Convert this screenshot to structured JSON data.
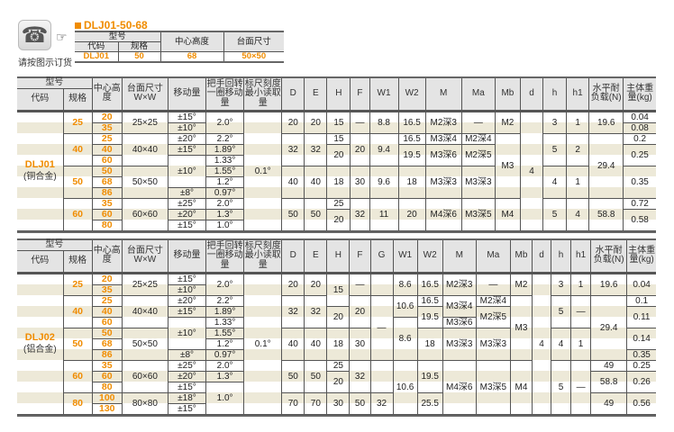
{
  "order": {
    "icon": "telephone-icon",
    "text": "请按图示订货",
    "hand_icon": "pointing-hand-icon"
  },
  "example": {
    "title": "DLJ01-50-68",
    "headers": {
      "model": "型号",
      "code": "代码",
      "size": "规格",
      "center": "中心高度",
      "table": "台面尺寸"
    },
    "values": {
      "code": "DLJ01",
      "size": "50",
      "center": "68",
      "table": "50×50"
    }
  },
  "colors": {
    "accent": "#f08c00",
    "stripe": "#ede9d8",
    "header": "#e4e4e4"
  },
  "table1": {
    "headers": {
      "model": "型号",
      "code": "代码",
      "size": "规格",
      "center": "中心高度",
      "table": "台面尺寸 W×W",
      "move": "移动量",
      "turn": "把手回转一圈移动量",
      "scale": "标尺刻度最小读取量",
      "D": "D",
      "E": "E",
      "H": "H",
      "F": "F",
      "W1": "W1",
      "W2": "W2",
      "M": "M",
      "Ma": "Ma",
      "Mb": "Mb",
      "d": "d",
      "h": "h",
      "h1": "h1",
      "load": "水平耐负载(N)",
      "weight": "主体重量(kg)"
    },
    "rows": [
      [
        {
          "k": "code",
          "t": "DLJ01",
          "sub": "(铜合金)",
          "rs": 11
        },
        {
          "k": "size",
          "t": "25",
          "rs": 2
        },
        {
          "k": "ch",
          "t": "20"
        },
        {
          "k": "tbl",
          "t": "25×25",
          "rs": 2
        },
        {
          "k": "move",
          "t": "±15°"
        },
        {
          "k": "turn",
          "t": "2.0°",
          "rs": 2
        },
        {
          "k": "scale",
          "t": "0.1°",
          "rs": 11
        },
        {
          "k": "D",
          "t": "20",
          "rs": 2
        },
        {
          "k": "E",
          "t": "20",
          "rs": 2
        },
        {
          "k": "H",
          "t": "15",
          "rs": 2
        },
        {
          "k": "F",
          "t": "—",
          "rs": 2
        },
        {
          "k": "W1",
          "t": "8.8",
          "rs": 2
        },
        {
          "k": "W2",
          "t": "16.5",
          "rs": 2
        },
        {
          "k": "M",
          "t": "M2深3",
          "rs": 2
        },
        {
          "k": "Ma",
          "t": "—",
          "rs": 2
        },
        {
          "k": "Mb",
          "t": "M2",
          "rs": 2
        },
        {
          "k": "d",
          "t": "4",
          "rs": 11
        },
        {
          "k": "h",
          "t": "3",
          "rs": 2
        },
        {
          "k": "h1",
          "t": "1",
          "rs": 2
        },
        {
          "k": "load",
          "t": "19.6",
          "rs": 2
        },
        {
          "k": "weight",
          "t": "0.04"
        }
      ],
      [
        {
          "k": "ch",
          "t": "35"
        },
        {
          "k": "move",
          "t": "±10°"
        },
        {
          "k": "weight",
          "t": "0.08"
        }
      ],
      [
        {
          "k": "size",
          "t": "40",
          "rs": 3
        },
        {
          "k": "ch",
          "t": "25"
        },
        {
          "k": "tbl",
          "t": "40×40",
          "rs": 3
        },
        {
          "k": "move",
          "t": "±20°"
        },
        {
          "k": "turn",
          "t": "2.2°"
        },
        {
          "k": "D",
          "t": "32",
          "rs": 3
        },
        {
          "k": "E",
          "t": "32",
          "rs": 3
        },
        {
          "k": "H",
          "t": "15"
        },
        {
          "k": "F",
          "t": "20",
          "rs": 3
        },
        {
          "k": "W1",
          "t": "9.4",
          "rs": 3
        },
        {
          "k": "W2",
          "t": "16.5"
        },
        {
          "k": "M",
          "t": "M3深4"
        },
        {
          "k": "Ma",
          "t": "M2深4"
        },
        {
          "k": "Mb",
          "t": "M3",
          "rs": 6
        },
        {
          "k": "h",
          "t": "5",
          "rs": 3
        },
        {
          "k": "h1",
          "t": "2",
          "rs": 3
        },
        {
          "k": "load",
          "t": "29.4",
          "rs": 6
        },
        {
          "k": "weight",
          "t": "0.2"
        }
      ],
      [
        {
          "k": "ch",
          "t": "40"
        },
        {
          "k": "move",
          "t": "±15°"
        },
        {
          "k": "turn",
          "t": "1.89°"
        },
        {
          "k": "H",
          "t": "20",
          "rs": 2
        },
        {
          "k": "W2",
          "t": "19.5",
          "rs": 2
        },
        {
          "k": "M",
          "t": "M3深6",
          "rs": 2
        },
        {
          "k": "Ma",
          "t": "M2深5",
          "rs": 2
        },
        {
          "k": "weight",
          "t": "0.25",
          "rs": 2
        }
      ],
      [
        {
          "k": "ch",
          "t": "60"
        },
        {
          "k": "move",
          "t": "±10°",
          "rs": 3
        },
        {
          "k": "turn",
          "t": "1.33°"
        }
      ],
      [
        {
          "k": "size",
          "t": "50",
          "rs": 3
        },
        {
          "k": "ch",
          "t": "50"
        },
        {
          "k": "tbl",
          "t": "50×50",
          "rs": 3
        },
        {
          "k": "turn",
          "t": "1.55°"
        },
        {
          "k": "D",
          "t": "40",
          "rs": 3
        },
        {
          "k": "E",
          "t": "40",
          "rs": 3
        },
        {
          "k": "H",
          "t": "18",
          "rs": 3
        },
        {
          "k": "F",
          "t": "30",
          "rs": 3
        },
        {
          "k": "W1",
          "t": "9.6",
          "rs": 3
        },
        {
          "k": "W2",
          "t": "18",
          "rs": 3
        },
        {
          "k": "M",
          "t": "M3深3",
          "rs": 3
        },
        {
          "k": "Ma",
          "t": "M3深3",
          "rs": 3
        },
        {
          "k": "h",
          "t": "4",
          "rs": 3
        },
        {
          "k": "h1",
          "t": "1",
          "rs": 3
        },
        {
          "k": "weight",
          "t": "0.35",
          "rs": 3
        }
      ],
      [
        {
          "k": "ch",
          "t": "68"
        },
        {
          "k": "turn",
          "t": "1.2°"
        }
      ],
      [
        {
          "k": "ch",
          "t": "86"
        },
        {
          "k": "move",
          "t": "±8°"
        },
        {
          "k": "turn",
          "t": "0.97°"
        }
      ],
      [
        {
          "k": "size",
          "t": "60",
          "rs": 3
        },
        {
          "k": "ch",
          "t": "35"
        },
        {
          "k": "tbl",
          "t": "60×60",
          "rs": 3
        },
        {
          "k": "move",
          "t": "±25°"
        },
        {
          "k": "turn",
          "t": "2.0°"
        },
        {
          "k": "D",
          "t": "50",
          "rs": 3
        },
        {
          "k": "E",
          "t": "50",
          "rs": 3
        },
        {
          "k": "H",
          "t": "25"
        },
        {
          "k": "F",
          "t": "32",
          "rs": 3
        },
        {
          "k": "W1",
          "t": "11",
          "rs": 3
        },
        {
          "k": "W2",
          "t": "20",
          "rs": 3
        },
        {
          "k": "M",
          "t": "M4深6",
          "rs": 3
        },
        {
          "k": "Ma",
          "t": "M3深5",
          "rs": 3
        },
        {
          "k": "Mb",
          "t": "M4",
          "rs": 3
        },
        {
          "k": "h",
          "t": "5",
          "rs": 3
        },
        {
          "k": "h1",
          "t": "4",
          "rs": 3
        },
        {
          "k": "load",
          "t": "58.8",
          "rs": 3
        },
        {
          "k": "weight",
          "t": "0.72"
        }
      ],
      [
        {
          "k": "ch",
          "t": "60"
        },
        {
          "k": "move",
          "t": "±20°"
        },
        {
          "k": "turn",
          "t": "1.3°"
        },
        {
          "k": "H",
          "t": "20",
          "rs": 2
        },
        {
          "k": "weight",
          "t": "0.58",
          "rs": 2
        }
      ],
      [
        {
          "k": "ch",
          "t": "80"
        },
        {
          "k": "move",
          "t": "±15°"
        },
        {
          "k": "turn",
          "t": "1.0°"
        }
      ]
    ]
  },
  "table2": {
    "headers": {
      "model": "型号",
      "code": "代码",
      "size": "规格",
      "center": "中心高度",
      "table": "台面尺寸 W×W",
      "move": "移动量",
      "turn": "把手回转一圈移动量",
      "scale": "标尺刻度最小读取量",
      "D": "D",
      "E": "E",
      "H": "H",
      "F": "F",
      "G": "G",
      "W1": "W1",
      "W2": "W2",
      "M": "M",
      "Ma": "Ma",
      "Mb": "Mb",
      "d": "d",
      "h": "h",
      "h1": "h1",
      "load": "水平耐负载(N)",
      "weight": "主体重量(kg)"
    },
    "rows": [
      [
        {
          "k": "code",
          "t": "DLJ02",
          "sub": "(铝合金)",
          "rs": 13
        },
        {
          "k": "size",
          "t": "25",
          "rs": 2
        },
        {
          "k": "ch",
          "t": "20"
        },
        {
          "k": "tbl",
          "t": "25×25",
          "rs": 2
        },
        {
          "k": "move",
          "t": "±15°"
        },
        {
          "k": "turn",
          "t": "2.0°",
          "rs": 2
        },
        {
          "k": "scale",
          "t": "0.1°",
          "rs": 13
        },
        {
          "k": "D",
          "t": "20",
          "rs": 2
        },
        {
          "k": "E",
          "t": "20",
          "rs": 2
        },
        {
          "k": "H",
          "t": "15",
          "rs": 3
        },
        {
          "k": "F",
          "t": "—",
          "rs": 2
        },
        {
          "k": "G",
          "t": "",
          "rs": 2
        },
        {
          "k": "W1",
          "t": "8.6",
          "rs": 2
        },
        {
          "k": "W2",
          "t": "16.5",
          "rs": 2
        },
        {
          "k": "M",
          "t": "M2深3",
          "rs": 2
        },
        {
          "k": "Ma",
          "t": "—",
          "rs": 2
        },
        {
          "k": "Mb",
          "t": "M2",
          "rs": 2
        },
        {
          "k": "d",
          "t": "4",
          "rs": 13
        },
        {
          "k": "h",
          "t": "3",
          "rs": 2
        },
        {
          "k": "h1",
          "t": "1",
          "rs": 2
        },
        {
          "k": "load",
          "t": "19.6",
          "rs": 2
        },
        {
          "k": "weight",
          "t": "0.04",
          "rs": 2
        }
      ],
      [
        {
          "k": "ch",
          "t": "35"
        },
        {
          "k": "move",
          "t": "±10°"
        }
      ],
      [
        {
          "k": "size",
          "t": "40",
          "rs": 3
        },
        {
          "k": "ch",
          "t": "25"
        },
        {
          "k": "tbl",
          "t": "40×40",
          "rs": 3
        },
        {
          "k": "move",
          "t": "±20°"
        },
        {
          "k": "turn",
          "t": "2.2°"
        },
        {
          "k": "D",
          "t": "32",
          "rs": 3
        },
        {
          "k": "E",
          "t": "32",
          "rs": 3
        },
        {
          "k": "F",
          "t": "20",
          "rs": 3
        },
        {
          "k": "G",
          "t": "—",
          "rs": 6
        },
        {
          "k": "W1",
          "t": "10.6",
          "rs": 2
        },
        {
          "k": "W2",
          "t": "16.5"
        },
        {
          "k": "M",
          "t": "M3深4",
          "rs": 2
        },
        {
          "k": "Ma",
          "t": "M2深4"
        },
        {
          "k": "Mb",
          "t": "M3",
          "rs": 6
        },
        {
          "k": "h",
          "t": "5",
          "rs": 3
        },
        {
          "k": "h1",
          "t": "—",
          "rs": 3
        },
        {
          "k": "load",
          "t": "29.4",
          "rs": 6
        },
        {
          "k": "weight",
          "t": "0.1"
        }
      ],
      [
        {
          "k": "ch",
          "t": "40"
        },
        {
          "k": "move",
          "t": "±15°"
        },
        {
          "k": "turn",
          "t": "1.89°"
        },
        {
          "k": "H",
          "t": "20",
          "rs": 2
        },
        {
          "k": "W2",
          "t": "19.5",
          "rs": 2
        },
        {
          "k": "Ma",
          "t": "M2深5",
          "rs": 2
        },
        {
          "k": "weight",
          "t": "0.11",
          "rs": 2
        }
      ],
      [
        {
          "k": "ch",
          "t": "60"
        },
        {
          "k": "move",
          "t": "±10°",
          "rs": 3
        },
        {
          "k": "turn",
          "t": "1.33°"
        },
        {
          "k": "W1",
          "t": "8.6",
          "rs": 4
        },
        {
          "k": "M",
          "t": "M3深6"
        }
      ],
      [
        {
          "k": "size",
          "t": "50",
          "rs": 3
        },
        {
          "k": "ch",
          "t": "50"
        },
        {
          "k": "tbl",
          "t": "50×50",
          "rs": 3
        },
        {
          "k": "turn",
          "t": "1.55°"
        },
        {
          "k": "D",
          "t": "40",
          "rs": 3
        },
        {
          "k": "E",
          "t": "40",
          "rs": 3
        },
        {
          "k": "H",
          "t": "18",
          "rs": 3
        },
        {
          "k": "F",
          "t": "30",
          "rs": 3
        },
        {
          "k": "W2",
          "t": "18",
          "rs": 3
        },
        {
          "k": "M",
          "t": "M3深3",
          "rs": 3
        },
        {
          "k": "Ma",
          "t": "M3深3",
          "rs": 3
        },
        {
          "k": "h",
          "t": "4",
          "rs": 3
        },
        {
          "k": "h1",
          "t": "1",
          "rs": 3
        },
        {
          "k": "weight",
          "t": "0.14",
          "rs": 2
        }
      ],
      [
        {
          "k": "ch",
          "t": "68"
        },
        {
          "k": "turn",
          "t": "1.2°"
        }
      ],
      [
        {
          "k": "ch",
          "t": "86"
        },
        {
          "k": "move",
          "t": "±8°"
        },
        {
          "k": "turn",
          "t": "0.97°"
        },
        {
          "k": "weight",
          "t": "0.35"
        }
      ],
      [
        {
          "k": "size",
          "t": "60",
          "rs": 3
        },
        {
          "k": "ch",
          "t": "35"
        },
        {
          "k": "tbl",
          "t": "60×60",
          "rs": 3
        },
        {
          "k": "move",
          "t": "±25°"
        },
        {
          "k": "turn",
          "t": "2.0°"
        },
        {
          "k": "D",
          "t": "50",
          "rs": 3
        },
        {
          "k": "E",
          "t": "50",
          "rs": 3
        },
        {
          "k": "H",
          "t": "25"
        },
        {
          "k": "F",
          "t": "32",
          "rs": 3
        },
        {
          "k": "G",
          "t": "",
          "rs": 3
        },
        {
          "k": "W1",
          "t": "10.6",
          "rs": 5
        },
        {
          "k": "W2",
          "t": "19.5",
          "rs": 3
        },
        {
          "k": "M",
          "t": "M4深6",
          "rs": 5
        },
        {
          "k": "Ma",
          "t": "M3深5",
          "rs": 5
        },
        {
          "k": "Mb",
          "t": "M4",
          "rs": 5
        },
        {
          "k": "h",
          "t": "5",
          "rs": 5
        },
        {
          "k": "h1",
          "t": "—",
          "rs": 5
        },
        {
          "k": "load",
          "t": "49"
        },
        {
          "k": "weight",
          "t": "0.25"
        }
      ],
      [
        {
          "k": "ch",
          "t": "60"
        },
        {
          "k": "move",
          "t": "±20°"
        },
        {
          "k": "turn",
          "t": "1.3°"
        },
        {
          "k": "H",
          "t": "20",
          "rs": 2
        },
        {
          "k": "load",
          "t": "58.8",
          "rs": 2
        },
        {
          "k": "weight",
          "t": "0.26",
          "rs": 2
        }
      ],
      [
        {
          "k": "ch",
          "t": "80"
        },
        {
          "k": "move",
          "t": "±15°"
        },
        {
          "k": "turn",
          "t": "1.0°",
          "rs": 3
        }
      ],
      [
        {
          "k": "size",
          "t": "80",
          "rs": 2
        },
        {
          "k": "ch",
          "t": "100"
        },
        {
          "k": "tbl",
          "t": "80×80",
          "rs": 2
        },
        {
          "k": "move",
          "t": "±18°"
        },
        {
          "k": "D",
          "t": "70",
          "rs": 2
        },
        {
          "k": "E",
          "t": "70",
          "rs": 2
        },
        {
          "k": "H",
          "t": "30",
          "rs": 2
        },
        {
          "k": "F",
          "t": "50",
          "rs": 2
        },
        {
          "k": "G",
          "t": "32",
          "rs": 2
        },
        {
          "k": "W2",
          "t": "25.5",
          "rs": 2
        },
        {
          "k": "load",
          "t": "49",
          "rs": 2
        },
        {
          "k": "weight",
          "t": "0.56",
          "rs": 2
        }
      ],
      [
        {
          "k": "ch",
          "t": "130"
        },
        {
          "k": "move",
          "t": "±15°"
        }
      ]
    ]
  }
}
